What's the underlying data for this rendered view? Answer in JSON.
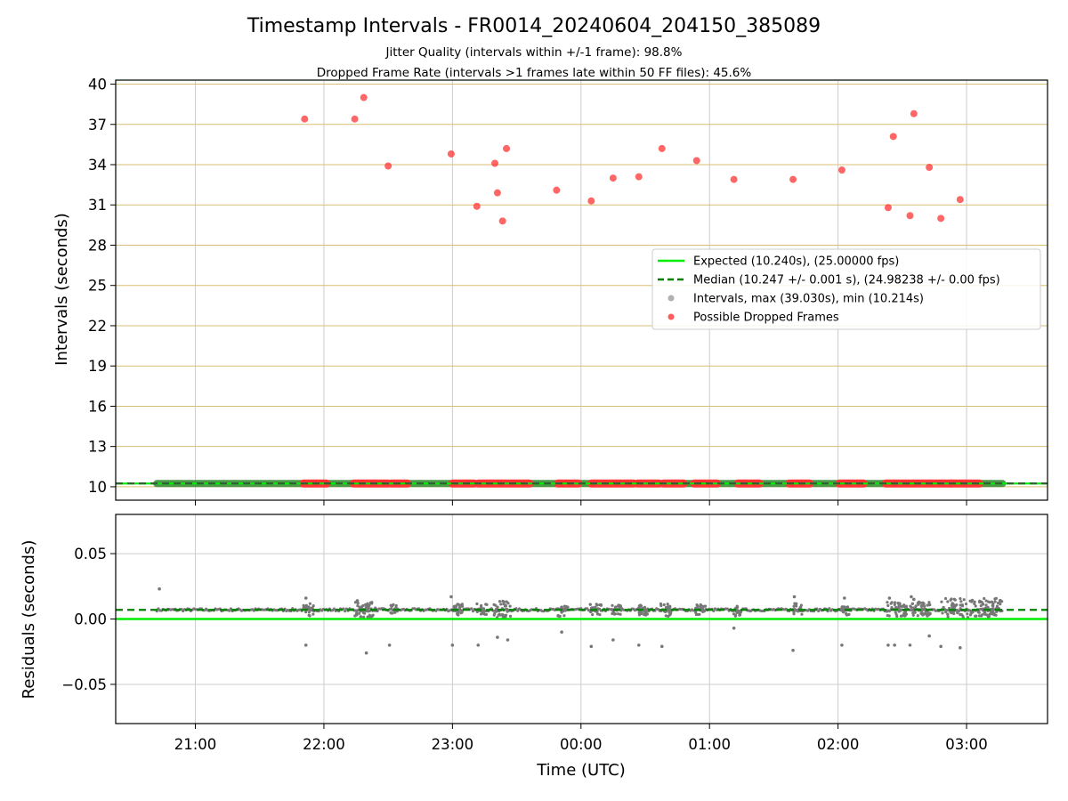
{
  "chart_data": [
    {
      "type": "scatter",
      "title": "Timestamp Intervals - FR0014_20240604_204150_385089",
      "subtitle_lines": [
        "Jitter Quality (intervals within +/-1 frame): 98.8%",
        "Dropped Frame Rate (intervals >1 frames late within 50 FF files): 45.6%"
      ],
      "ylabel": "Intervals (seconds)",
      "xlabel": "",
      "ylim": [
        9.0,
        40.3
      ],
      "yticks": [
        10,
        13,
        16,
        19,
        22,
        25,
        28,
        31,
        34,
        37,
        40
      ],
      "ytick_labels": [
        "10",
        "13",
        "16",
        "19",
        "22",
        "25",
        "28",
        "31",
        "34",
        "37",
        "40"
      ],
      "xlim_hours": [
        20.38,
        27.63
      ],
      "grid": true,
      "legend_position": "center-right",
      "legend": [
        {
          "label": "Expected (10.240s), (25.00000 fps)",
          "kind": "line",
          "color": "#00ee00"
        },
        {
          "label": "Median (10.247 +/- 0.001 s), (24.98238 +/- 0.00 fps)",
          "kind": "dashed",
          "color": "#008000"
        },
        {
          "label": "Intervals, max (39.030s), min (10.214s)",
          "kind": "point",
          "color": "#9e9e9e"
        },
        {
          "label": "Possible Dropped Frames",
          "kind": "point",
          "color": "#ff3333"
        }
      ],
      "expected_interval": 10.24,
      "median_interval": 10.247,
      "interval_band": {
        "x_start": 20.7,
        "x_end": 27.28,
        "y": 10.24
      },
      "dropped_frame_segments": [
        [
          21.84,
          22.02
        ],
        [
          22.23,
          22.5
        ],
        [
          22.52,
          22.65
        ],
        [
          23.0,
          23.17
        ],
        [
          23.2,
          23.6
        ],
        [
          23.82,
          23.98
        ],
        [
          24.08,
          24.41
        ],
        [
          24.44,
          24.61
        ],
        [
          24.64,
          24.8
        ],
        [
          24.88,
          25.06
        ],
        [
          25.22,
          25.39
        ],
        [
          25.62,
          25.78
        ],
        [
          26.01,
          26.2
        ],
        [
          26.37,
          26.56
        ],
        [
          26.57,
          26.88
        ],
        [
          26.88,
          27.1
        ]
      ],
      "dropped_frame_points": [
        {
          "x": 21.85,
          "y": 37.4
        },
        {
          "x": 22.24,
          "y": 37.4
        },
        {
          "x": 22.31,
          "y": 39.0
        },
        {
          "x": 22.5,
          "y": 33.9
        },
        {
          "x": 22.99,
          "y": 34.8
        },
        {
          "x": 23.19,
          "y": 30.9
        },
        {
          "x": 23.33,
          "y": 34.1
        },
        {
          "x": 23.35,
          "y": 31.9
        },
        {
          "x": 23.39,
          "y": 29.8
        },
        {
          "x": 23.42,
          "y": 35.2
        },
        {
          "x": 23.81,
          "y": 32.1
        },
        {
          "x": 24.08,
          "y": 31.3
        },
        {
          "x": 24.25,
          "y": 33.0
        },
        {
          "x": 24.45,
          "y": 33.1
        },
        {
          "x": 24.63,
          "y": 35.2
        },
        {
          "x": 24.9,
          "y": 34.3
        },
        {
          "x": 25.19,
          "y": 32.9
        },
        {
          "x": 25.65,
          "y": 32.9
        },
        {
          "x": 26.03,
          "y": 33.6
        },
        {
          "x": 26.39,
          "y": 30.8
        },
        {
          "x": 26.43,
          "y": 36.1
        },
        {
          "x": 26.56,
          "y": 30.2
        },
        {
          "x": 26.59,
          "y": 37.8
        },
        {
          "x": 26.71,
          "y": 33.8
        },
        {
          "x": 26.8,
          "y": 30.0
        },
        {
          "x": 26.95,
          "y": 31.4
        }
      ]
    },
    {
      "type": "scatter",
      "title": "",
      "xlabel": "Time (UTC)",
      "ylabel": "Residuals (seconds)",
      "ylim": [
        -0.08,
        0.08
      ],
      "yticks": [
        -0.05,
        0.0,
        0.05
      ],
      "ytick_labels": [
        "−0.05",
        "0.00",
        "0.05"
      ],
      "xlim_hours": [
        20.38,
        27.63
      ],
      "xticks": [
        21,
        22,
        23,
        24,
        25,
        26,
        27
      ],
      "xtick_labels": [
        "21:00",
        "22:00",
        "23:00",
        "00:00",
        "01:00",
        "02:00",
        "03:00"
      ],
      "grid": true,
      "expected_residual": 0.0,
      "median_residual": 0.007,
      "residual_band": {
        "x_start": 20.7,
        "x_end": 27.28,
        "y": 0.007
      },
      "outliers": [
        {
          "x": 20.72,
          "y": 0.023
        },
        {
          "x": 21.86,
          "y": -0.02
        },
        {
          "x": 22.33,
          "y": -0.026
        },
        {
          "x": 22.51,
          "y": -0.02
        },
        {
          "x": 23.0,
          "y": -0.02
        },
        {
          "x": 23.2,
          "y": -0.02
        },
        {
          "x": 23.35,
          "y": -0.014
        },
        {
          "x": 23.43,
          "y": -0.016
        },
        {
          "x": 23.85,
          "y": -0.01
        },
        {
          "x": 24.08,
          "y": -0.021
        },
        {
          "x": 24.25,
          "y": -0.016
        },
        {
          "x": 24.45,
          "y": -0.02
        },
        {
          "x": 24.63,
          "y": -0.021
        },
        {
          "x": 25.19,
          "y": -0.007
        },
        {
          "x": 25.65,
          "y": -0.024
        },
        {
          "x": 26.03,
          "y": -0.02
        },
        {
          "x": 26.39,
          "y": -0.02
        },
        {
          "x": 26.44,
          "y": -0.02
        },
        {
          "x": 26.56,
          "y": -0.02
        },
        {
          "x": 26.71,
          "y": -0.013
        },
        {
          "x": 26.8,
          "y": -0.021
        },
        {
          "x": 26.95,
          "y": -0.022
        },
        {
          "x": 21.86,
          "y": 0.016
        },
        {
          "x": 22.26,
          "y": 0.014
        },
        {
          "x": 22.99,
          "y": 0.017
        },
        {
          "x": 25.66,
          "y": 0.017
        },
        {
          "x": 26.05,
          "y": 0.016
        },
        {
          "x": 26.4,
          "y": 0.016
        },
        {
          "x": 26.57,
          "y": 0.017
        },
        {
          "x": 26.59,
          "y": 0.015
        }
      ],
      "clusters": [
        {
          "x0": 21.84,
          "x1": 21.92,
          "ymin": 0.0,
          "ymax": 0.012
        },
        {
          "x0": 22.24,
          "x1": 22.4,
          "ymin": 0.001,
          "ymax": 0.013
        },
        {
          "x0": 22.52,
          "x1": 22.58,
          "ymin": 0.004,
          "ymax": 0.011
        },
        {
          "x0": 22.99,
          "x1": 23.08,
          "ymin": 0.003,
          "ymax": 0.012
        },
        {
          "x0": 23.19,
          "x1": 23.27,
          "ymin": 0.003,
          "ymax": 0.012
        },
        {
          "x0": 23.32,
          "x1": 23.46,
          "ymin": 0.001,
          "ymax": 0.014
        },
        {
          "x0": 23.82,
          "x1": 23.9,
          "ymin": 0.002,
          "ymax": 0.01
        },
        {
          "x0": 24.07,
          "x1": 24.16,
          "ymin": 0.003,
          "ymax": 0.012
        },
        {
          "x0": 24.24,
          "x1": 24.32,
          "ymin": 0.003,
          "ymax": 0.011
        },
        {
          "x0": 24.44,
          "x1": 24.52,
          "ymin": 0.003,
          "ymax": 0.011
        },
        {
          "x0": 24.62,
          "x1": 24.7,
          "ymin": 0.002,
          "ymax": 0.012
        },
        {
          "x0": 24.89,
          "x1": 24.97,
          "ymin": 0.003,
          "ymax": 0.011
        },
        {
          "x0": 25.18,
          "x1": 25.25,
          "ymin": 0.002,
          "ymax": 0.01
        },
        {
          "x0": 25.64,
          "x1": 25.72,
          "ymin": 0.003,
          "ymax": 0.012
        },
        {
          "x0": 26.02,
          "x1": 26.1,
          "ymin": 0.003,
          "ymax": 0.01
        },
        {
          "x0": 26.38,
          "x1": 26.72,
          "ymin": 0.002,
          "ymax": 0.013
        },
        {
          "x0": 26.8,
          "x1": 27.28,
          "ymin": 0.001,
          "ymax": 0.016
        }
      ]
    }
  ],
  "colors": {
    "expected": "#00ee00",
    "median": "#008000",
    "intervals": "#9e9e9e",
    "residual_points": "#777777",
    "dropped": "#ff3333",
    "interval_band": "#3a8d3a",
    "top_grid": "#d9bf73",
    "grid": "#cccccc"
  }
}
